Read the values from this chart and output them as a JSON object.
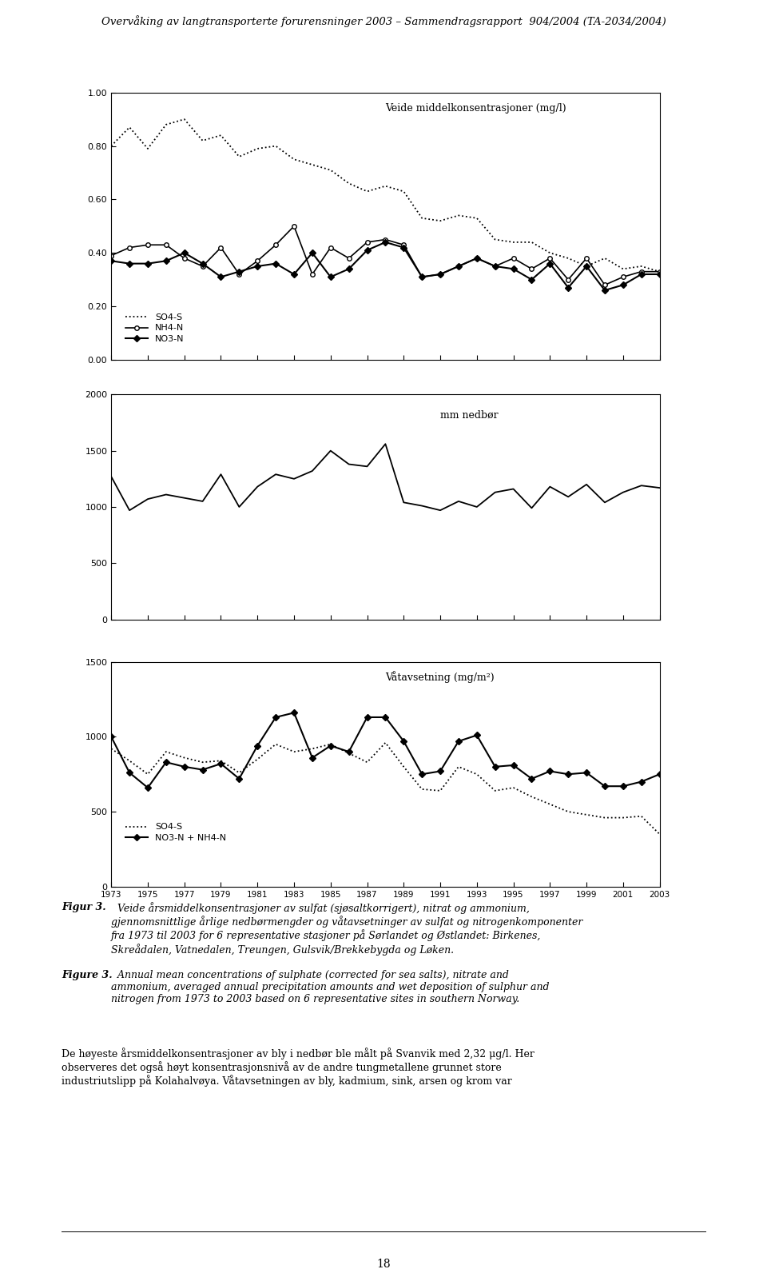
{
  "page_title": "Overvåking av langtransporterte forurensninger 2003 – Sammendragsrapport  904/2004 (TA-2034/2004)",
  "years": [
    1973,
    1974,
    1975,
    1976,
    1977,
    1978,
    1979,
    1980,
    1981,
    1982,
    1983,
    1984,
    1985,
    1986,
    1987,
    1988,
    1989,
    1990,
    1991,
    1992,
    1993,
    1994,
    1995,
    1996,
    1997,
    1998,
    1999,
    2000,
    2001,
    2002,
    2003
  ],
  "so4_s": [
    0.8,
    0.87,
    0.79,
    0.88,
    0.9,
    0.82,
    0.84,
    0.76,
    0.79,
    0.8,
    0.75,
    0.73,
    0.71,
    0.66,
    0.63,
    0.65,
    0.63,
    0.53,
    0.52,
    0.54,
    0.53,
    0.45,
    0.44,
    0.44,
    0.4,
    0.38,
    0.35,
    0.38,
    0.34,
    0.35,
    0.33
  ],
  "nh4_n": [
    0.39,
    0.42,
    0.43,
    0.43,
    0.38,
    0.35,
    0.42,
    0.32,
    0.37,
    0.43,
    0.5,
    0.32,
    0.42,
    0.38,
    0.44,
    0.45,
    0.43,
    0.31,
    0.32,
    0.35,
    0.38,
    0.35,
    0.38,
    0.34,
    0.38,
    0.3,
    0.38,
    0.28,
    0.31,
    0.33,
    0.33
  ],
  "no3_n": [
    0.37,
    0.36,
    0.36,
    0.37,
    0.4,
    0.36,
    0.31,
    0.33,
    0.35,
    0.36,
    0.32,
    0.4,
    0.31,
    0.34,
    0.41,
    0.44,
    0.42,
    0.31,
    0.32,
    0.35,
    0.38,
    0.35,
    0.34,
    0.3,
    0.36,
    0.27,
    0.35,
    0.26,
    0.28,
    0.32,
    0.32
  ],
  "precip": [
    1270,
    970,
    1070,
    1110,
    1080,
    1050,
    1290,
    1000,
    1180,
    1290,
    1250,
    1320,
    1500,
    1380,
    1360,
    1560,
    1040,
    1010,
    970,
    1050,
    1000,
    1130,
    1160,
    990,
    1180,
    1090,
    1200,
    1040,
    1130,
    1190,
    1170
  ],
  "wat_so4": [
    920,
    840,
    750,
    900,
    860,
    830,
    840,
    760,
    850,
    950,
    900,
    920,
    950,
    890,
    830,
    960,
    800,
    650,
    640,
    800,
    750,
    640,
    660,
    600,
    550,
    500,
    480,
    460,
    460,
    470,
    350
  ],
  "wat_n": [
    1000,
    760,
    660,
    830,
    800,
    780,
    820,
    720,
    940,
    1130,
    1160,
    860,
    940,
    900,
    1130,
    1130,
    970,
    750,
    770,
    970,
    1010,
    800,
    810,
    720,
    770,
    750,
    760,
    670,
    670,
    700,
    750
  ],
  "chart1_title": "Veide middelkonsentrasjoner (mg/l)",
  "chart2_title": "mm nedbør",
  "chart3_title": "Våtavsetning (mg/m²)",
  "chart1_ylim": [
    0.0,
    1.0
  ],
  "chart1_yticks": [
    0.0,
    0.2,
    0.4,
    0.6,
    0.8,
    1.0
  ],
  "chart2_ylim": [
    0,
    2000
  ],
  "chart2_yticks": [
    0,
    500,
    1000,
    1500,
    2000
  ],
  "chart3_ylim": [
    0,
    1500
  ],
  "chart3_yticks": [
    0,
    500,
    1000,
    1500
  ],
  "xtick_years": [
    1973,
    1975,
    1977,
    1979,
    1981,
    1983,
    1985,
    1987,
    1989,
    1991,
    1993,
    1995,
    1997,
    1999,
    2001,
    2003
  ],
  "legend1_so4": "SO4-S",
  "legend1_nh4": "NH4-N",
  "legend1_no3": "NO3-N",
  "legend3_so4": "SO4-S",
  "legend3_n": "NO3-N + NH4-N",
  "bg_color": "#ffffff",
  "line_color": "#000000",
  "page_number": "18",
  "figur_label": "Figur 3.",
  "figur_text": "  Veide årsmiddelkonsentrasjoner av sulfat (sjøsaltkorrigert), nitrat og ammonium,\ngjennomsnittlige årlige nedbørmengder og våtavsetninger av sulfat og nitrogenkomponenter\nfra 1973 til 2003 for 6 representative stasjoner på Sørlandet og Østlandet: Birkenes,\nSkreådalen, Vatnedalen, Treungen, Gulsvik/Brekkebygda og Løken.",
  "figure_label": "Figure 3.",
  "figure_text": "  Annual mean concentrations of sulphate (corrected for sea salts), nitrate and\nammonium, averaged annual precipitation amounts and wet deposition of sulphur and\nnitrogen from 1973 to 2003 based on 6 representative sites in southern Norway.",
  "body_text": "De høyeste årsmiddelkonsentrasjoner av bly i nedbør ble målt på Svanvik med 2,32 μg/l. Her\nobserveres det også høyt konsentrasjonsnivå av de andre tungmetallene grunnet store\nindustriutslipp på Kolahalvøya. Våtavsetningen av bly, kadmium, sink, arsen og krom var"
}
